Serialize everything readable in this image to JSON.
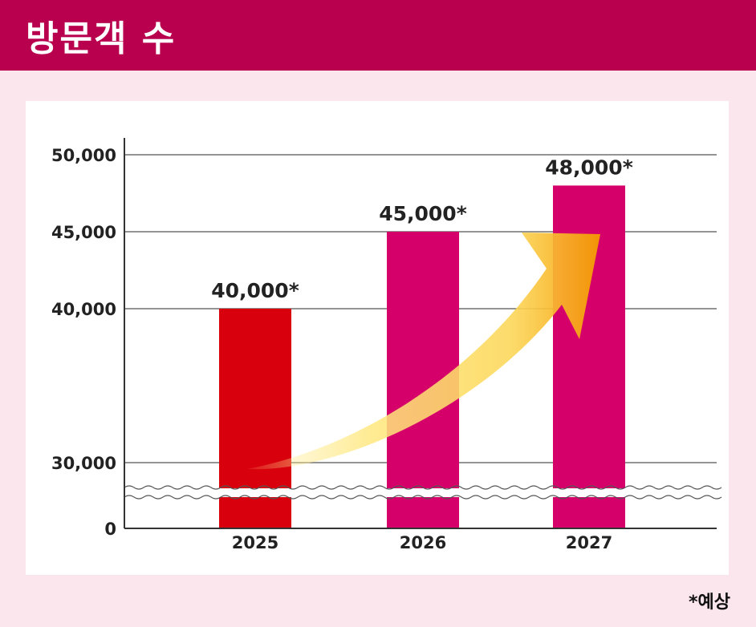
{
  "header": {
    "title": "방문객 수"
  },
  "footnote": "*예상",
  "colors": {
    "header_bg": "#b8004f",
    "page_bg": "#fbe6ee",
    "bar_2025": "#d9000d",
    "bar_other": "#d6006b",
    "arrow_start": "#ffeb96",
    "arrow_end": "#f59b00"
  },
  "chart_data": {
    "type": "bar",
    "title": "방문객 수",
    "categories": [
      "2025",
      "2026",
      "2027"
    ],
    "values": [
      40000,
      45000,
      48000
    ],
    "data_labels": [
      "40,000*",
      "45,000*",
      "48,000*"
    ],
    "bar_colors": [
      "#d9000d",
      "#d6006b",
      "#d6006b"
    ],
    "yticks": [
      0,
      30000,
      40000,
      45000,
      50000
    ],
    "ytick_labels": [
      "0",
      "30,000",
      "40,000",
      "45,000",
      "50,000"
    ],
    "ylim": [
      0,
      50000
    ],
    "axis_break": true,
    "grid": true,
    "xlabel": "",
    "ylabel": "",
    "annotations": [
      "upward trend arrow from 2025 to 2027"
    ]
  }
}
